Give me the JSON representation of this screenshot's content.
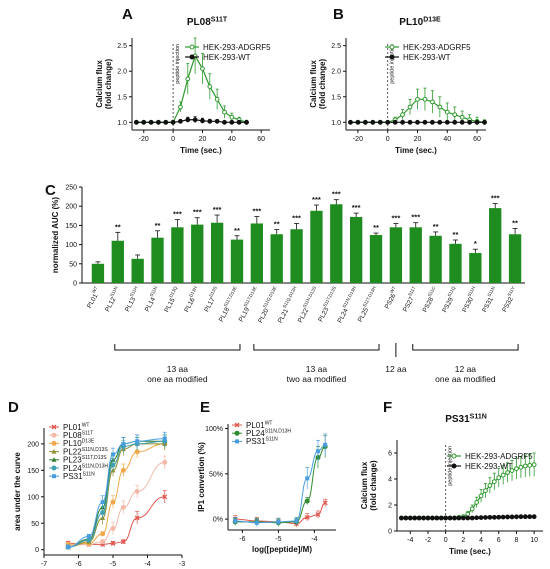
{
  "chart_data": [
    {
      "id": "A",
      "type": "line",
      "letter": "A",
      "title_main": "PL08",
      "title_sup": "S11T",
      "xlabel": "Time (sec.)",
      "ylabel": [
        "Calcium flux",
        "(fold change)"
      ],
      "xlim": [
        -28,
        66
      ],
      "ylim": [
        0.85,
        2.65
      ],
      "xticks": [
        -20,
        0,
        20,
        40,
        60
      ],
      "yticks": [
        1.0,
        1.5,
        2.0,
        2.5
      ],
      "ytick_labels": [
        "1.0",
        "1.5",
        "2.0",
        "2.5"
      ],
      "annotation": "peptide injection",
      "vline": 0,
      "legend": "top-right",
      "series": [
        {
          "name": "HEK-293-ADGRF5",
          "color": "#2e9a2e",
          "marker": "circle-open",
          "x": [
            -25,
            -20,
            -15,
            -10,
            -5,
            0,
            5,
            10,
            15,
            20,
            25,
            30,
            35,
            40,
            45,
            50
          ],
          "y": [
            1.0,
            1.0,
            1.0,
            1.0,
            1.0,
            1.0,
            1.3,
            1.85,
            2.3,
            2.05,
            1.7,
            1.45,
            1.2,
            1.1,
            1.05,
            1.0
          ],
          "err": [
            0.02,
            0.02,
            0.03,
            0.03,
            0.03,
            0.04,
            0.1,
            0.3,
            0.35,
            0.3,
            0.25,
            0.2,
            0.12,
            0.08,
            0.05,
            0.04
          ]
        },
        {
          "name": "HEK-293-WT",
          "color": "#111111",
          "marker": "circle",
          "x": [
            -25,
            -20,
            -15,
            -10,
            -5,
            0,
            5,
            10,
            15,
            20,
            25,
            30,
            35,
            40,
            45,
            50
          ],
          "y": [
            1.0,
            1.0,
            1.0,
            1.0,
            1.0,
            1.0,
            1.02,
            1.05,
            1.05,
            1.03,
            1.02,
            1.02,
            1.0,
            1.0,
            1.0,
            1.0
          ],
          "err": [
            0.01,
            0.01,
            0.01,
            0.01,
            0.01,
            0.02,
            0.03,
            0.05,
            0.06,
            0.05,
            0.04,
            0.03,
            0.02,
            0.02,
            0.01,
            0.01
          ]
        }
      ]
    },
    {
      "id": "B",
      "type": "line",
      "letter": "B",
      "title_main": "PL10",
      "title_sup": "D13E",
      "xlabel": "Time (sec.)",
      "ylabel": [
        "Calcium flux",
        "(fold change)"
      ],
      "xlim": [
        -28,
        66
      ],
      "ylim": [
        0.85,
        2.65
      ],
      "xticks": [
        -20,
        0,
        20,
        40,
        60
      ],
      "yticks": [
        1.0,
        1.5,
        2.0,
        2.5
      ],
      "ytick_labels": [
        "1.0",
        "1.5",
        "2.0",
        "2.5"
      ],
      "annotation": "peptide injection",
      "vline": 0,
      "legend": "top-right",
      "series": [
        {
          "name": "HEK-293-ADGRF5",
          "color": "#2e9a2e",
          "marker": "circle-open",
          "x": [
            -25,
            -20,
            -15,
            -10,
            -5,
            0,
            5,
            10,
            15,
            20,
            25,
            30,
            35,
            40,
            45,
            50,
            55,
            60,
            65
          ],
          "y": [
            1.0,
            1.0,
            1.0,
            1.0,
            1.0,
            1.0,
            1.05,
            1.15,
            1.3,
            1.45,
            1.45,
            1.4,
            1.3,
            1.2,
            1.15,
            1.1,
            1.05,
            1.02,
            1.0
          ],
          "err": [
            0.02,
            0.02,
            0.02,
            0.02,
            0.03,
            0.03,
            0.05,
            0.1,
            0.15,
            0.2,
            0.22,
            0.22,
            0.2,
            0.18,
            0.15,
            0.12,
            0.1,
            0.08,
            0.05
          ]
        },
        {
          "name": "HEK-293-WT",
          "color": "#111111",
          "marker": "circle",
          "x": [
            -25,
            -20,
            -15,
            -10,
            -5,
            0,
            5,
            10,
            15,
            20,
            25,
            30,
            35,
            40,
            45,
            50,
            55,
            60,
            65
          ],
          "y": [
            1.0,
            1.0,
            1.0,
            1.0,
            1.0,
            1.0,
            1.0,
            1.0,
            1.0,
            1.0,
            1.0,
            1.0,
            1.0,
            1.0,
            1.0,
            1.0,
            1.0,
            1.0,
            1.0
          ],
          "err": [
            0.01,
            0.01,
            0.01,
            0.01,
            0.01,
            0.01,
            0.02,
            0.02,
            0.03,
            0.03,
            0.03,
            0.02,
            0.02,
            0.02,
            0.02,
            0.01,
            0.01,
            0.01,
            0.01
          ]
        }
      ]
    },
    {
      "id": "C",
      "type": "bar",
      "letter": "C",
      "ylabel": "normalized AUC (%)",
      "ylim": [
        0,
        250
      ],
      "yticks": [
        0,
        50,
        100,
        150,
        200,
        250
      ],
      "bar_color": "#1e8c1e",
      "categories": [
        {
          "base": "PL01",
          "sup": "WT"
        },
        {
          "base": "PL12",
          "sup": "S11N"
        },
        {
          "base": "PL13",
          "sup": "S11H"
        },
        {
          "base": "PL14",
          "sup": "S11N"
        },
        {
          "base": "PL15",
          "sup": "D13Q"
        },
        {
          "base": "PL16",
          "sup": "D13H"
        },
        {
          "base": "PL17",
          "sup": "D13S"
        },
        {
          "base": "PL18",
          "sup": "S11T,D13E"
        },
        {
          "base": "PL19",
          "sup": "S11T,D13E"
        },
        {
          "base": "PL20",
          "sup": "S11Q,D13E"
        },
        {
          "base": "PL21",
          "sup": "S11Q,D13H"
        },
        {
          "base": "PL22",
          "sup": "S11N,D13S"
        },
        {
          "base": "PL23",
          "sup": "S11T,D13S"
        },
        {
          "base": "PL24",
          "sup": "S11N,D13H"
        },
        {
          "base": "PL25",
          "sup": "S11T,D13H"
        },
        {
          "base": "PS26",
          "sup": "WT"
        },
        {
          "base": "PS27",
          "sup": "S11T"
        },
        {
          "base": "PS28",
          "sup": "S11C"
        },
        {
          "base": "PS29",
          "sup": "S11Q"
        },
        {
          "base": "PS30",
          "sup": "S11H"
        },
        {
          "base": "PS31",
          "sup": "S11N"
        },
        {
          "base": "PS32",
          "sup": "S11Y"
        }
      ],
      "values": [
        50,
        110,
        63,
        118,
        145,
        152,
        157,
        113,
        155,
        127,
        140,
        188,
        205,
        172,
        125,
        145,
        145,
        123,
        102,
        78,
        195,
        127
      ],
      "errors": [
        5,
        22,
        10,
        18,
        20,
        18,
        20,
        10,
        18,
        12,
        15,
        15,
        12,
        10,
        5,
        10,
        12,
        10,
        10,
        10,
        12,
        15
      ],
      "significance": [
        "",
        "**",
        "",
        "**",
        "***",
        "***",
        "***",
        "**",
        "***",
        "**",
        "***",
        "***",
        "***",
        "***",
        "**",
        "***",
        "***",
        "**",
        "**",
        "*",
        "***",
        "**"
      ],
      "groups": [
        {
          "start": 1,
          "end": 7,
          "label": [
            "13 aa",
            "one aa modified"
          ]
        },
        {
          "start": 8,
          "end": 14,
          "label": [
            "13 aa",
            "two aa modified"
          ]
        },
        {
          "start": 15,
          "end": 15,
          "label": [
            "12 aa"
          ]
        },
        {
          "start": 16,
          "end": 21,
          "label": [
            "12 aa",
            "one aa modified"
          ]
        }
      ]
    },
    {
      "id": "D",
      "type": "scatter",
      "letter": "D",
      "xlabel": "log([peptide]/M)",
      "ylabel": "area under the curve",
      "xlim": [
        -7,
        -3
      ],
      "ylim": [
        -10,
        230
      ],
      "xticks": [
        -7,
        -6,
        -5,
        -4,
        -3
      ],
      "yticks": [
        0,
        50,
        100,
        150,
        200
      ],
      "legend": "top-left",
      "series": [
        {
          "base": "PL01",
          "sup": "WT",
          "color": "#e0574f",
          "marker": "x",
          "x": [
            -6.3,
            -5.7,
            -5.3,
            -5.0,
            -4.7,
            -4.3,
            -3.5
          ],
          "y": [
            12,
            10,
            10,
            12,
            15,
            60,
            100
          ]
        },
        {
          "base": "PL08",
          "sup": "S11T",
          "color": "#f3b9a8",
          "marker": "circle",
          "x": [
            -6.3,
            -5.7,
            -5.3,
            -5.0,
            -4.7,
            -4.3,
            -3.5
          ],
          "y": [
            8,
            10,
            15,
            40,
            80,
            110,
            165
          ]
        },
        {
          "base": "PL10",
          "sup": "D13E",
          "color": "#f0a84a",
          "marker": "circle",
          "x": [
            -6.3,
            -5.7,
            -5.3,
            -5.0,
            -4.7,
            -4.3,
            -3.5
          ],
          "y": [
            10,
            12,
            30,
            90,
            150,
            185,
            200
          ]
        },
        {
          "base": "PL22",
          "sup": "S11N,D13S",
          "color": "#8f8f2f",
          "marker": "triangle",
          "x": [
            -6.3,
            -5.7,
            -5.3,
            -5.0,
            -4.7,
            -4.3,
            -3.5
          ],
          "y": [
            5,
            15,
            60,
            150,
            190,
            200,
            200
          ]
        },
        {
          "base": "PL23",
          "sup": "S11T,D13S",
          "color": "#2f7d2f",
          "marker": "triangle",
          "x": [
            -6.3,
            -5.7,
            -5.3,
            -5.0,
            -4.7,
            -4.3,
            -3.5
          ],
          "y": [
            5,
            20,
            80,
            170,
            200,
            205,
            205
          ]
        },
        {
          "base": "PL24",
          "sup": "S11N,D13H",
          "color": "#3fa0b0",
          "marker": "circle",
          "x": [
            -6.3,
            -5.7,
            -5.3,
            -5.0,
            -4.7,
            -4.3,
            -3.5
          ],
          "y": [
            5,
            18,
            70,
            160,
            195,
            200,
            205
          ]
        },
        {
          "base": "PS31",
          "sup": "S11N",
          "color": "#4a9ee0",
          "marker": "square",
          "x": [
            -6.3,
            -5.7,
            -5.3,
            -5.0,
            -4.7,
            -4.3,
            -3.5
          ],
          "y": [
            5,
            25,
            90,
            180,
            200,
            205,
            210
          ]
        }
      ]
    },
    {
      "id": "E",
      "type": "scatter",
      "letter": "E",
      "xlabel": "log([peptide]/M)",
      "ylabel": "IP1 convertion (%)",
      "xlim": [
        -6.4,
        -3.4
      ],
      "ylim": [
        -12,
        105
      ],
      "xticks": [
        -6,
        -5,
        -4
      ],
      "yticks": [
        0,
        50,
        100
      ],
      "ytick_labels": [
        "0%",
        "50%",
        "100%"
      ],
      "legend": "top-left",
      "series": [
        {
          "base": "PL01",
          "sup": "WT",
          "color": "#e0574f",
          "marker": "x",
          "x": [
            -6.2,
            -5.6,
            -5.0,
            -4.5,
            -4.2,
            -3.9,
            -3.7
          ],
          "y": [
            0,
            -2,
            -3,
            -5,
            2,
            5,
            18
          ]
        },
        {
          "base": "PL24",
          "sup": "S11N,D13H",
          "color": "#2e8b2e",
          "marker": "circle",
          "x": [
            -6.2,
            -5.6,
            -5.0,
            -4.5,
            -4.2,
            -3.9,
            -3.7
          ],
          "y": [
            -3,
            -3,
            -4,
            -3,
            20,
            68,
            80
          ]
        },
        {
          "base": "PS31",
          "sup": "S11N",
          "color": "#4a9ee0",
          "marker": "square",
          "x": [
            -6.2,
            -5.6,
            -5.0,
            -4.5,
            -4.2,
            -3.9,
            -3.7
          ],
          "y": [
            -2,
            -4,
            -3,
            -2,
            45,
            75,
            82
          ]
        }
      ]
    },
    {
      "id": "F",
      "type": "line",
      "letter": "F",
      "title_main": "PS31",
      "title_sup": "S11N",
      "xlabel": "Time (sec.)",
      "ylabel": [
        "Calcium flux",
        "(fold change)"
      ],
      "xlim": [
        -5.5,
        11
      ],
      "ylim": [
        0,
        7
      ],
      "xticks": [
        -4,
        -2,
        0,
        2,
        4,
        6,
        8,
        10
      ],
      "yticks": [
        0,
        2,
        4,
        6
      ],
      "annotation": "peptide injection",
      "vline": 0,
      "legend": "top-right",
      "series": [
        {
          "name": "HEK-293-ADGRF5",
          "color": "#2e9a2e",
          "marker": "circle-open",
          "x": [
            -5,
            -4.5,
            -4,
            -3.5,
            -3,
            -2.5,
            -2,
            -1.5,
            -1,
            -0.5,
            0,
            0.5,
            1,
            1.5,
            2,
            2.5,
            3,
            3.5,
            4,
            4.5,
            5,
            5.5,
            6,
            6.5,
            7,
            7.5,
            8,
            8.5,
            9,
            9.5,
            10
          ],
          "y": [
            1.0,
            1.0,
            1.0,
            1.0,
            1.0,
            1.0,
            1.0,
            1.0,
            1.0,
            1.0,
            1.0,
            1.0,
            1.0,
            1.05,
            1.1,
            1.3,
            1.7,
            2.2,
            2.7,
            3.1,
            3.5,
            3.8,
            4.1,
            4.3,
            4.5,
            4.65,
            4.8,
            4.9,
            5.0,
            5.05,
            5.1
          ],
          "err": [
            0,
            0,
            0,
            0,
            0,
            0,
            0,
            0,
            0,
            0,
            0,
            0.02,
            0.03,
            0.05,
            0.1,
            0.2,
            0.3,
            0.4,
            0.5,
            0.55,
            0.6,
            0.65,
            0.7,
            0.72,
            0.75,
            0.78,
            0.8,
            0.82,
            0.85,
            0.85,
            0.9
          ]
        },
        {
          "name": "HEK-293-WT",
          "color": "#111111",
          "marker": "circle",
          "x": [
            -5,
            -4.5,
            -4,
            -3.5,
            -3,
            -2.5,
            -2,
            -1.5,
            -1,
            -0.5,
            0,
            0.5,
            1,
            1.5,
            2,
            2.5,
            3,
            3.5,
            4,
            4.5,
            5,
            5.5,
            6,
            6.5,
            7,
            7.5,
            8,
            8.5,
            9,
            9.5,
            10
          ],
          "y": [
            1.0,
            1.0,
            1.0,
            1.0,
            1.0,
            1.0,
            1.0,
            1.0,
            1.0,
            1.0,
            1.0,
            1.0,
            1.0,
            1.0,
            1.0,
            1.0,
            1.0,
            1.02,
            1.03,
            1.04,
            1.05,
            1.05,
            1.06,
            1.07,
            1.08,
            1.08,
            1.09,
            1.1,
            1.1,
            1.1,
            1.1
          ],
          "err": [
            0,
            0,
            0,
            0,
            0,
            0,
            0,
            0,
            0,
            0,
            0,
            0.01,
            0.01,
            0.01,
            0.01,
            0.01,
            0.01,
            0.01,
            0.02,
            0.02,
            0.02,
            0.02,
            0.02,
            0.02,
            0.02,
            0.02,
            0.02,
            0.03,
            0.03,
            0.03,
            0.03
          ]
        }
      ]
    }
  ]
}
